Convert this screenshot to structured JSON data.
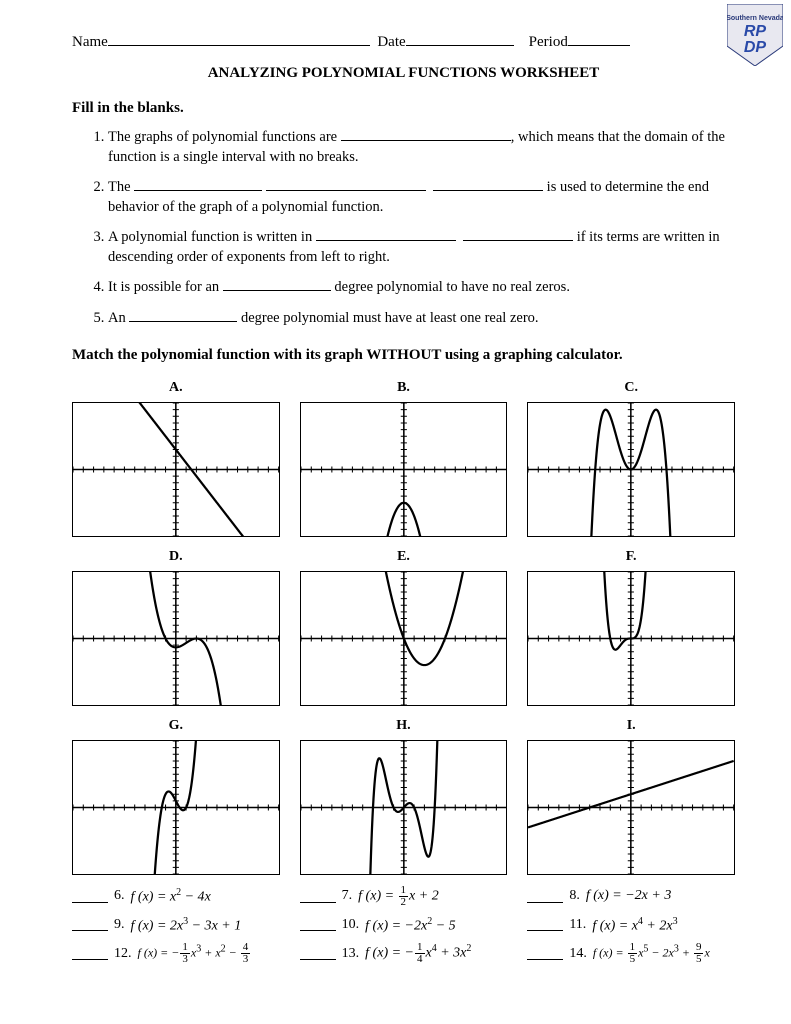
{
  "header": {
    "name_label": "Name",
    "date_label": "Date",
    "period_label": "Period"
  },
  "title": "ANALYZING POLYNOMIAL FUNCTIONS WORKSHEET",
  "sections": {
    "fill_heading": "Fill in the blanks.",
    "match_heading": "Match the polynomial function with its graph WITHOUT using a graphing calculator."
  },
  "fill": [
    {
      "a": "The graphs of  polynomial functions are ",
      "b": ", which means that the domain of the function is a single interval with no breaks."
    },
    {
      "a": "The ",
      "b": "is used to determine the end behavior of the graph of a polynomial function."
    },
    {
      "a": "A polynomial function is written in ",
      "b": "if its terms are written in descending order of exponents from left to right."
    },
    {
      "a": "It is possible for an ",
      "b": "degree polynomial to have no real zeros."
    },
    {
      "a": "An ",
      "b": "degree polynomial must have at least one real zero."
    }
  ],
  "graph_style": {
    "view": {
      "xmin": -10,
      "xmax": 10,
      "ymin": -10,
      "ymax": 10
    },
    "axis_color": "#000000",
    "axis_width": 1.5,
    "tick_spacing": 1,
    "tick_len": 3,
    "curve_color": "#000000",
    "curve_width": 2.2,
    "border_color": "#000000",
    "background": "#ffffff"
  },
  "graphs": [
    {
      "label": "A.",
      "type": "line",
      "expr": "-2*x+3"
    },
    {
      "label": "B.",
      "type": "poly",
      "expr": "-2*x*x-5"
    },
    {
      "label": "C.",
      "type": "poly",
      "expr": "-0.25*Math.pow(x,4)+3*x*x"
    },
    {
      "label": "D.",
      "type": "poly",
      "expr": "-(1/3)*Math.pow(x,3)+x*x-4/3"
    },
    {
      "label": "E.",
      "type": "poly",
      "expr": "x*x-4*x"
    },
    {
      "label": "F.",
      "type": "poly",
      "expr": "Math.pow(x,4)+2*Math.pow(x,3)"
    },
    {
      "label": "G.",
      "type": "poly",
      "expr": "2*Math.pow(x,3)-3*x+1"
    },
    {
      "label": "H.",
      "type": "poly",
      "expr": "0.2*Math.pow(x,5)-2*Math.pow(x,3)+1.8*x"
    },
    {
      "label": "I.",
      "type": "line",
      "expr": "0.5*x+2"
    }
  ],
  "equations": [
    {
      "n": "6.",
      "html": "<i>f</i> (<i>x</i>) = <i>x</i><sup>2</sup> − 4<i>x</i>"
    },
    {
      "n": "7.",
      "html": "<i>f</i> (<i>x</i>) = <span class='frac'><span class='n'>1</span><span class='d'>2</span></span><i>x</i> + 2"
    },
    {
      "n": "8.",
      "html": "<i>f</i> (<i>x</i>) = −2<i>x</i> + 3"
    },
    {
      "n": "9.",
      "html": "<i>f</i> (<i>x</i>) = 2<i>x</i><sup>3</sup> − 3<i>x</i> + 1"
    },
    {
      "n": "10.",
      "html": "<i>f</i> (<i>x</i>) = −2<i>x</i><sup>2</sup> − 5"
    },
    {
      "n": "11.",
      "html": "<i>f</i> (<i>x</i>) = <i>x</i><sup>4</sup> + 2<i>x</i><sup>3</sup>"
    },
    {
      "n": "12.",
      "html": "<i>f</i> (<i>x</i>) = −<span class='frac'><span class='n'>1</span><span class='d'>3</span></span><i>x</i><sup>3</sup> + <i>x</i><sup>2</sup> − <span class='frac'><span class='n'>4</span><span class='d'>3</span></span>",
      "small": true
    },
    {
      "n": "13.",
      "html": "<i>f</i> (<i>x</i>) = −<span class='frac'><span class='n'>1</span><span class='d'>4</span></span><i>x</i><sup>4</sup> + 3<i>x</i><sup>2</sup>"
    },
    {
      "n": "14.",
      "html": "<i>f</i> (<i>x</i>) = <span class='frac'><span class='n'>1</span><span class='d'>5</span></span><i>x</i><sup>5</sup> − 2<i>x</i><sup>3</sup> + <span class='frac'><span class='n'>9</span><span class='d'>5</span></span><i>x</i>",
      "small": true
    }
  ]
}
